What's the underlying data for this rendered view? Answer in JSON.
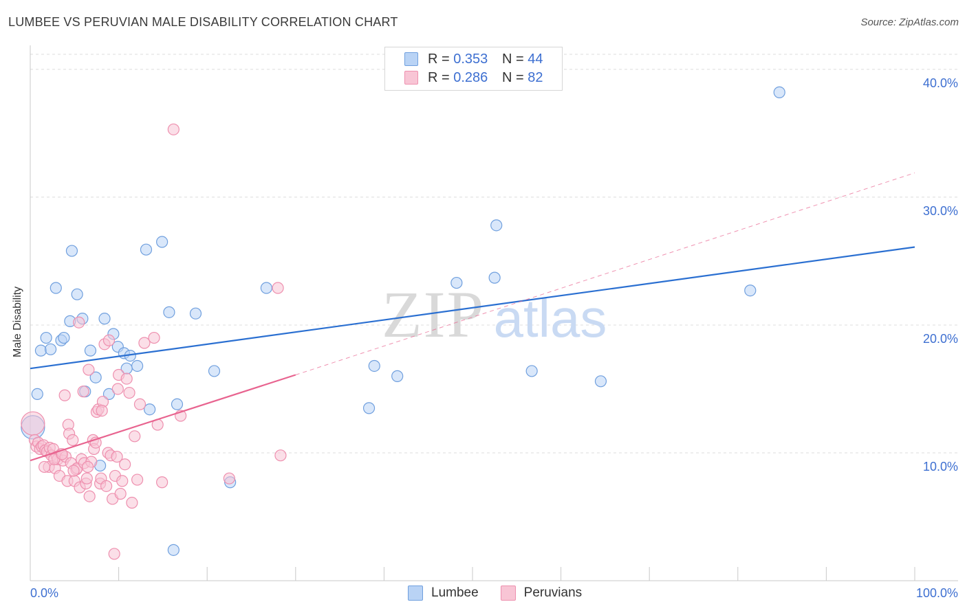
{
  "header": {
    "title": "LUMBEE VS PERUVIAN MALE DISABILITY CORRELATION CHART",
    "source": "Source: ZipAtlas.com"
  },
  "watermark": {
    "zip": "ZIP",
    "atlas": "atlas"
  },
  "colors": {
    "lumbee_fill": "#b9d3f5",
    "lumbee_stroke": "#6f9fde",
    "lumbee_line": "#2a6fd1",
    "peru_fill": "#f8c5d5",
    "peru_stroke": "#ee8fae",
    "peru_line": "#e8638f",
    "tick_label": "#3d6fd1",
    "grid": "#dcdcdc"
  },
  "legend_top": [
    {
      "r_label": "R = ",
      "r_value": "0.353",
      "n_label": "N = ",
      "n_value": "44"
    },
    {
      "r_label": "R = ",
      "r_value": "0.286",
      "n_label": "N = ",
      "n_value": "82"
    }
  ],
  "legend_bottom": [
    "Lumbee",
    "Peruvians"
  ],
  "chart_data": {
    "type": "scatter",
    "title": "LUMBEE VS PERUVIAN MALE DISABILITY CORRELATION CHART",
    "xlabel": "",
    "ylabel": "Male Disability",
    "xlim": [
      0,
      100
    ],
    "ylim": [
      0,
      41.5
    ],
    "x_tick_labels": [
      {
        "value": 0,
        "label": "0.0%"
      },
      {
        "value": 100,
        "label": "100.0%"
      }
    ],
    "y_ticks": [
      {
        "value": 10,
        "label": "10.0%"
      },
      {
        "value": 20,
        "label": "20.0%"
      },
      {
        "value": 30,
        "label": "30.0%"
      },
      {
        "value": 40,
        "label": "40.0%"
      }
    ],
    "series": [
      {
        "name": "Lumbee",
        "r": 0.353,
        "n": 44,
        "trend": {
          "x0": 0,
          "y0": 16.6,
          "x1": 100,
          "y1": 26.1,
          "dashed_extension": false
        },
        "points": [
          [
            0.8,
            14.6
          ],
          [
            1.2,
            18
          ],
          [
            1.8,
            19
          ],
          [
            2.3,
            18.1
          ],
          [
            2.9,
            22.9
          ],
          [
            3.5,
            18.8
          ],
          [
            3.8,
            19
          ],
          [
            4.5,
            20.3
          ],
          [
            4.7,
            25.8
          ],
          [
            5.3,
            22.4
          ],
          [
            5.9,
            20.5
          ],
          [
            6.2,
            14.8
          ],
          [
            6.8,
            18
          ],
          [
            7.4,
            15.9
          ],
          [
            7.9,
            9
          ],
          [
            8.4,
            20.5
          ],
          [
            8.9,
            14.6
          ],
          [
            9.4,
            19.3
          ],
          [
            9.9,
            18.3
          ],
          [
            10.6,
            17.8
          ],
          [
            10.9,
            16.6
          ],
          [
            11.3,
            17.6
          ],
          [
            12.1,
            16.8
          ],
          [
            13.1,
            25.9
          ],
          [
            13.5,
            13.4
          ],
          [
            14.9,
            26.5
          ],
          [
            15.7,
            21
          ],
          [
            16.2,
            2.4
          ],
          [
            16.6,
            13.8
          ],
          [
            18.7,
            20.9
          ],
          [
            20.8,
            16.4
          ],
          [
            22.6,
            7.7
          ],
          [
            26.7,
            22.9
          ],
          [
            38.3,
            13.5
          ],
          [
            38.9,
            16.8
          ],
          [
            41.5,
            16
          ],
          [
            48.2,
            23.3
          ],
          [
            52.5,
            23.7
          ],
          [
            52.7,
            27.8
          ],
          [
            56.7,
            16.4
          ],
          [
            64.5,
            15.6
          ],
          [
            81.4,
            22.7
          ],
          [
            84.7,
            38.2
          ],
          [
            0.3,
            12
          ]
        ]
      },
      {
        "name": "Peruvians",
        "r": 0.286,
        "n": 82,
        "trend": {
          "x0": 0,
          "y0": 9.4,
          "x1": 30,
          "y1": 16.1,
          "dash_x1": 100,
          "dash_y1": 31.9
        },
        "points": [
          [
            0.3,
            12.3
          ],
          [
            0.5,
            11
          ],
          [
            0.7,
            10.5
          ],
          [
            0.9,
            10.8
          ],
          [
            1.1,
            10.3
          ],
          [
            1.3,
            10.5
          ],
          [
            1.5,
            10.6
          ],
          [
            1.7,
            10.2
          ],
          [
            1.9,
            10.1
          ],
          [
            2.1,
            8.9
          ],
          [
            2.2,
            10.4
          ],
          [
            2.4,
            9.8
          ],
          [
            2.6,
            10.3
          ],
          [
            2.8,
            8.8
          ],
          [
            3,
            9.7
          ],
          [
            3.1,
            9.5
          ],
          [
            3.3,
            8.2
          ],
          [
            3.5,
            9.9
          ],
          [
            3.7,
            9.4
          ],
          [
            3.9,
            14.5
          ],
          [
            4,
            9.7
          ],
          [
            4.2,
            7.8
          ],
          [
            4.3,
            12.2
          ],
          [
            4.4,
            11.5
          ],
          [
            4.6,
            9.2
          ],
          [
            4.8,
            11
          ],
          [
            5,
            7.8
          ],
          [
            5.2,
            8.7
          ],
          [
            5.3,
            8.8
          ],
          [
            5.5,
            20.2
          ],
          [
            5.6,
            7.3
          ],
          [
            5.8,
            9.5
          ],
          [
            6,
            14.8
          ],
          [
            6.1,
            9.2
          ],
          [
            6.3,
            7.6
          ],
          [
            6.4,
            8
          ],
          [
            6.6,
            16.5
          ],
          [
            6.7,
            6.6
          ],
          [
            6.9,
            9.3
          ],
          [
            7.1,
            11
          ],
          [
            7.2,
            10.3
          ],
          [
            7.4,
            10.8
          ],
          [
            7.5,
            13.2
          ],
          [
            7.7,
            13.4
          ],
          [
            7.9,
            7.6
          ],
          [
            8,
            8
          ],
          [
            8.2,
            14
          ],
          [
            8.4,
            18.5
          ],
          [
            8.6,
            7.4
          ],
          [
            8.8,
            10
          ],
          [
            8.9,
            18.8
          ],
          [
            9.1,
            9.8
          ],
          [
            9.3,
            6.4
          ],
          [
            9.5,
            2.1
          ],
          [
            9.6,
            8.2
          ],
          [
            9.8,
            9.7
          ],
          [
            10,
            16.1
          ],
          [
            10.2,
            6.8
          ],
          [
            10.4,
            7.8
          ],
          [
            10.7,
            9.1
          ],
          [
            10.9,
            15.8
          ],
          [
            11.2,
            14.7
          ],
          [
            11.5,
            6.1
          ],
          [
            11.8,
            11.3
          ],
          [
            12.1,
            7.9
          ],
          [
            12.4,
            13.8
          ],
          [
            12.9,
            18.6
          ],
          [
            14,
            19
          ],
          [
            14.4,
            12.2
          ],
          [
            14.9,
            7.7
          ],
          [
            16.2,
            35.3
          ],
          [
            17,
            12.9
          ],
          [
            22.5,
            8
          ],
          [
            28,
            22.9
          ],
          [
            28.3,
            9.8
          ],
          [
            1.6,
            8.9
          ],
          [
            2.7,
            9.5
          ],
          [
            3.6,
            9.9
          ],
          [
            4.9,
            8.6
          ],
          [
            6.5,
            8.9
          ],
          [
            8.1,
            13.3
          ],
          [
            9.9,
            15
          ]
        ]
      }
    ]
  }
}
